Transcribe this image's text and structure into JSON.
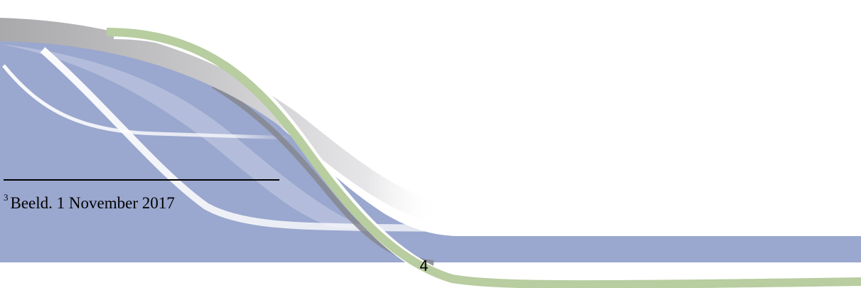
{
  "page": {
    "page_number": "4"
  },
  "footnote": {
    "marker": "3",
    "text": "Beeld. 1 November 2017"
  },
  "colors": {
    "background": "#ffffff",
    "band_blue": "#9aa7ce",
    "band_gray": "#b3b3b5",
    "band_green": "#b8cda0",
    "highlight_white": "#ffffff",
    "text": "#000000"
  }
}
